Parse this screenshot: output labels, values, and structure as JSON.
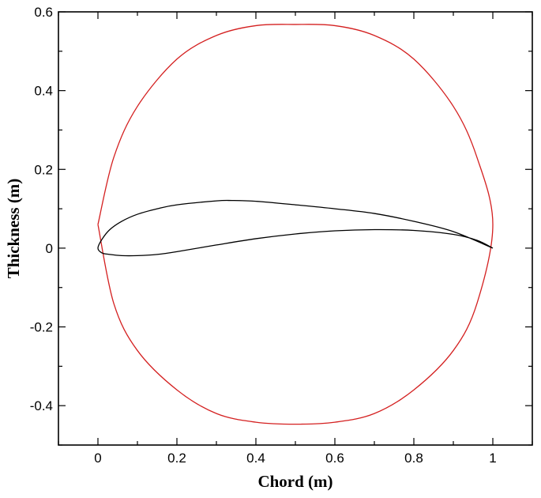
{
  "chart_data": {
    "type": "line",
    "xlabel": "Chord (m)",
    "ylabel": "Thickness (m)",
    "xlim": [
      -0.1,
      1.1
    ],
    "ylim": [
      -0.5,
      0.6
    ],
    "grid": false,
    "x_ticks": [
      0,
      0.2,
      0.4,
      0.6,
      0.8,
      1
    ],
    "x_tick_labels": [
      "0",
      "0.2",
      "0.4",
      "0.6",
      "0.8",
      "1"
    ],
    "y_ticks": [
      -0.4,
      -0.2,
      0,
      0.2,
      0.4,
      0.6
    ],
    "y_tick_labels": [
      "-0.4",
      "-0.2",
      "0",
      "0.2",
      "0.4",
      "0.6"
    ],
    "series": [
      {
        "color": "#d42020",
        "x": [
          0.0,
          0.04,
          0.1,
          0.2,
          0.3,
          0.4,
          0.5,
          0.6,
          0.7,
          0.8,
          0.9,
          0.96,
          1.0,
          0.96,
          0.9,
          0.8,
          0.7,
          0.6,
          0.5,
          0.4,
          0.3,
          0.2,
          0.1,
          0.04,
          0.0
        ],
        "y": [
          0.06,
          0.23,
          0.36,
          0.48,
          0.54,
          0.565,
          0.568,
          0.565,
          0.54,
          0.48,
          0.36,
          0.23,
          0.06,
          -0.14,
          -0.26,
          -0.36,
          -0.42,
          -0.442,
          -0.447,
          -0.442,
          -0.42,
          -0.36,
          -0.26,
          -0.14,
          0.06
        ]
      },
      {
        "color": "#000000",
        "x": [
          1.0,
          0.9,
          0.8,
          0.7,
          0.6,
          0.5,
          0.4,
          0.34,
          0.3,
          0.2,
          0.15,
          0.1,
          0.06,
          0.03,
          0.01,
          0.0,
          0.01,
          0.03,
          0.06,
          0.1,
          0.15,
          0.2,
          0.3,
          0.4,
          0.5,
          0.6,
          0.7,
          0.8,
          0.9,
          0.96,
          1.0
        ],
        "y": [
          0.0,
          0.042,
          0.068,
          0.088,
          0.1,
          0.11,
          0.119,
          0.121,
          0.12,
          0.11,
          0.1,
          0.086,
          0.068,
          0.047,
          0.022,
          0.0,
          -0.012,
          -0.016,
          -0.019,
          -0.019,
          -0.016,
          -0.009,
          0.008,
          0.024,
          0.036,
          0.044,
          0.047,
          0.045,
          0.035,
          0.02,
          0.0
        ]
      }
    ]
  }
}
